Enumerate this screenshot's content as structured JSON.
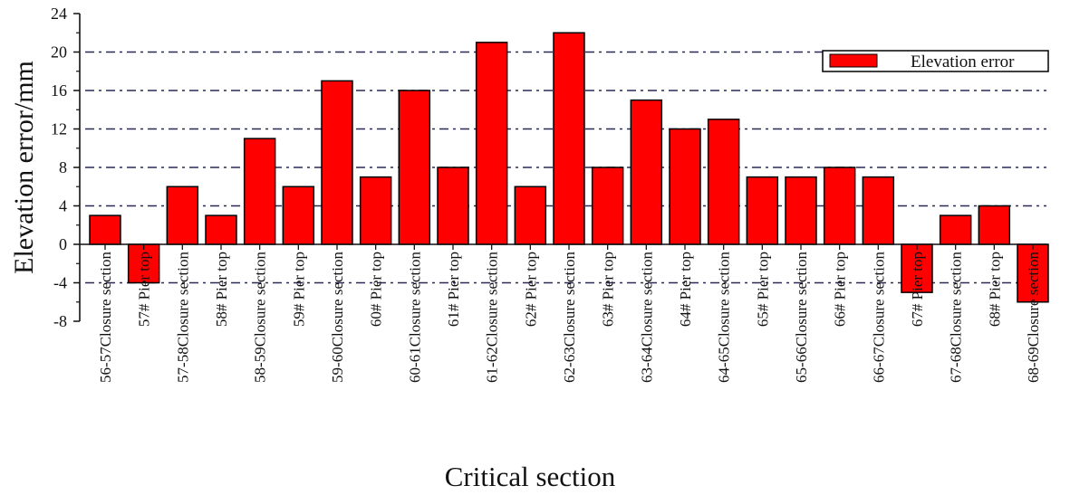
{
  "chart_data": {
    "type": "bar",
    "title": "",
    "xlabel": "Critical section",
    "ylabel": "Elevation error/mm",
    "ylim": [
      -8,
      24
    ],
    "yticks": [
      -8,
      -4,
      0,
      4,
      8,
      12,
      16,
      20,
      24
    ],
    "grid": true,
    "legend": {
      "position": "top-right",
      "entries": [
        "Elevation error"
      ]
    },
    "colors": {
      "bar": "#ff0000",
      "edge": "#000000",
      "grid": "#2a2a55"
    },
    "categories": [
      "56-57Closure section",
      "57# Pier top",
      "57-58Closure section",
      "58# Pier top",
      "58-59Closure section",
      "59# Pier top",
      "59-60Closure section",
      "60# Pier top",
      "60-61Closure section",
      "61# Pier top",
      "61-62Closure section",
      "62# Pier top",
      "62-63Closure section",
      "63# Pier top",
      "63-64Closure section",
      "64# Pier top",
      "64-65Closure section",
      "65# Pier top",
      "65-66Closure section",
      "66# Pier top",
      "66-67Closure section",
      "67# Pier top",
      "67-68Closure section",
      "68# Pier top",
      "68-69Closure section"
    ],
    "series": [
      {
        "name": "Elevation error",
        "values": [
          3,
          -4,
          6,
          3,
          11,
          6,
          17,
          7,
          16,
          8,
          21,
          6,
          22,
          8,
          15,
          12,
          13,
          7,
          7,
          8,
          7,
          -5,
          3,
          4,
          -6
        ]
      }
    ]
  }
}
